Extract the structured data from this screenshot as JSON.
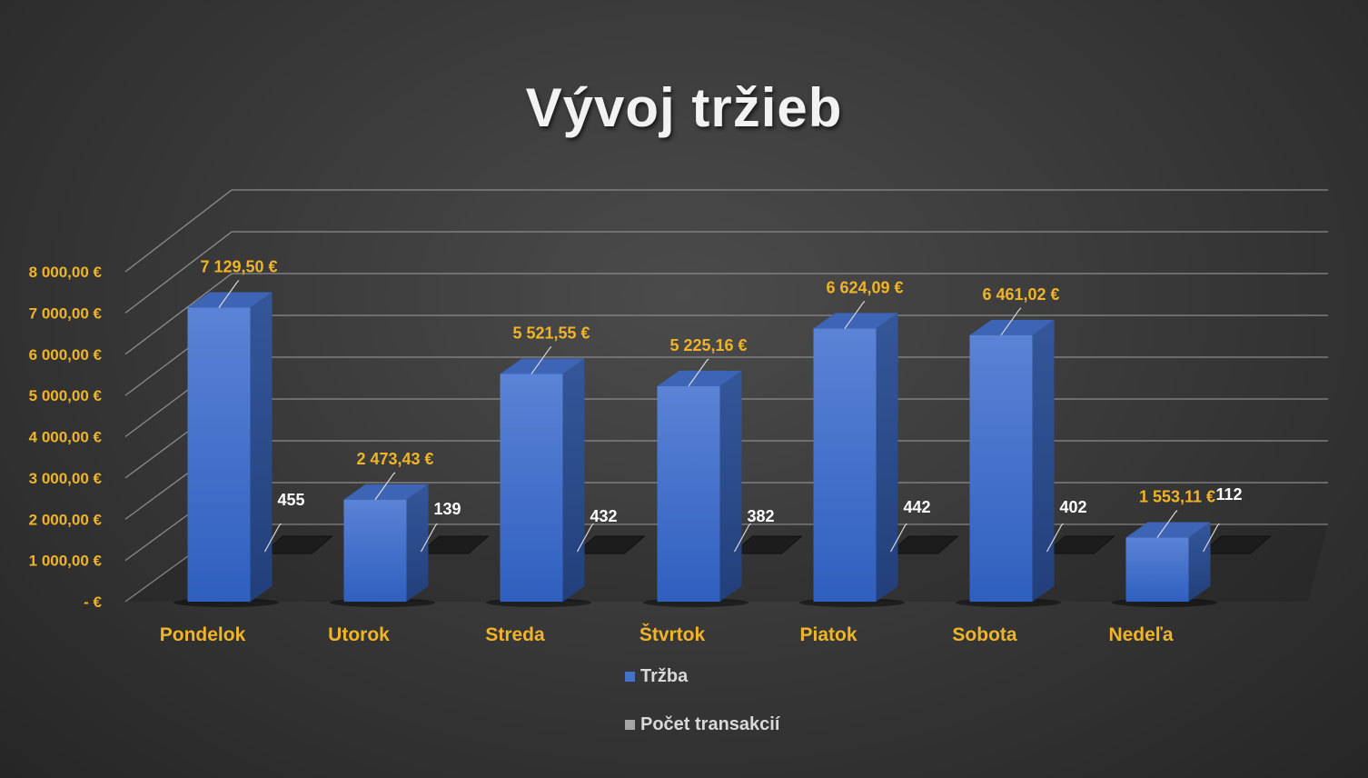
{
  "colors": {
    "ytick": "#f0b429",
    "value_label": "#f0b429",
    "count_label": "#ffffff",
    "bar_front": "#4472c4",
    "count_series": "#a5a5a5"
  },
  "chart_data": {
    "type": "bar",
    "title": "Vývoj tržieb",
    "categories": [
      "Pondelok",
      "Utorok",
      "Streda",
      "Štvrtok",
      "Piatok",
      "Sobota",
      "Nedeľa"
    ],
    "series": [
      {
        "name": "Tržba",
        "values": [
          7129.5,
          2473.43,
          5521.55,
          5225.16,
          6624.09,
          6461.02,
          1553.11
        ],
        "labels": [
          "7 129,50 €",
          "2 473,43 €",
          "5 521,55 €",
          "5 225,16 €",
          "6 624,09 €",
          "6 461,02 €",
          "1 553,11 €"
        ]
      },
      {
        "name": "Počet transakcií",
        "values": [
          455,
          139,
          432,
          382,
          442,
          402,
          112
        ],
        "labels": [
          "455",
          "139",
          "432",
          "382",
          "442",
          "402",
          "112"
        ]
      }
    ],
    "ylim": [
      0,
      8000
    ],
    "yticks": [
      0,
      1000,
      2000,
      3000,
      4000,
      5000,
      6000,
      7000,
      8000
    ],
    "ytick_labels": [
      "-  €",
      "1 000,00 €",
      "2 000,00 €",
      "3 000,00 €",
      "4 000,00 €",
      "5 000,00 €",
      "6 000,00 €",
      "7 000,00 €",
      "8 000,00 €"
    ],
    "grid": true,
    "legend_position": "bottom",
    "xlabel": "",
    "ylabel": ""
  }
}
